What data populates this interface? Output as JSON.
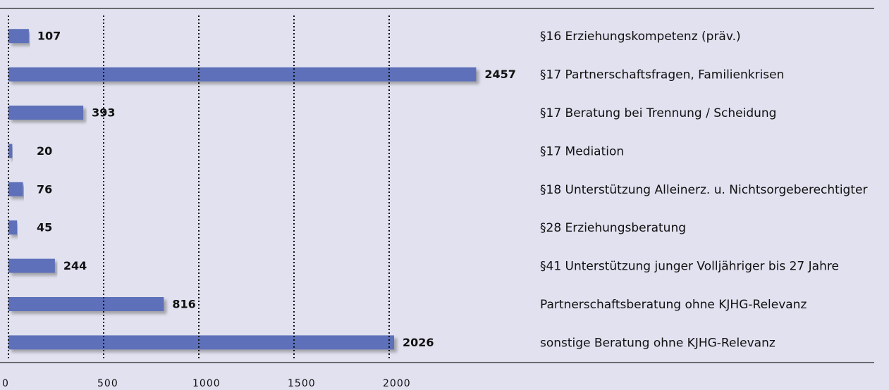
{
  "chart_data": {
    "type": "bar",
    "orientation": "horizontal",
    "categories": [
      "§16 Erziehungskompetenz (präv.)",
      "§17 Partnerschaftsfragen, Familienkrisen",
      "§17 Beratung bei Trennung / Scheidung",
      "§17 Mediation",
      "§18 Unterstützung Alleinerz. u. Nichtsorgeberechtigter",
      "§28 Erziehungsberatung",
      "§41 Unterstützung junger Volljähriger bis 27 Jahre",
      "Partnerschaftsberatung ohne KJHG-Relevanz",
      "sonstige Beratung ohne KJHG-Relevanz"
    ],
    "values": [
      107,
      2457,
      393,
      20,
      76,
      45,
      244,
      816,
      2026
    ],
    "color": "#5d6fb9",
    "xlim": [
      0,
      2500
    ],
    "xticks": [
      0,
      500,
      1000,
      1500,
      2000
    ],
    "grid": true
  }
}
